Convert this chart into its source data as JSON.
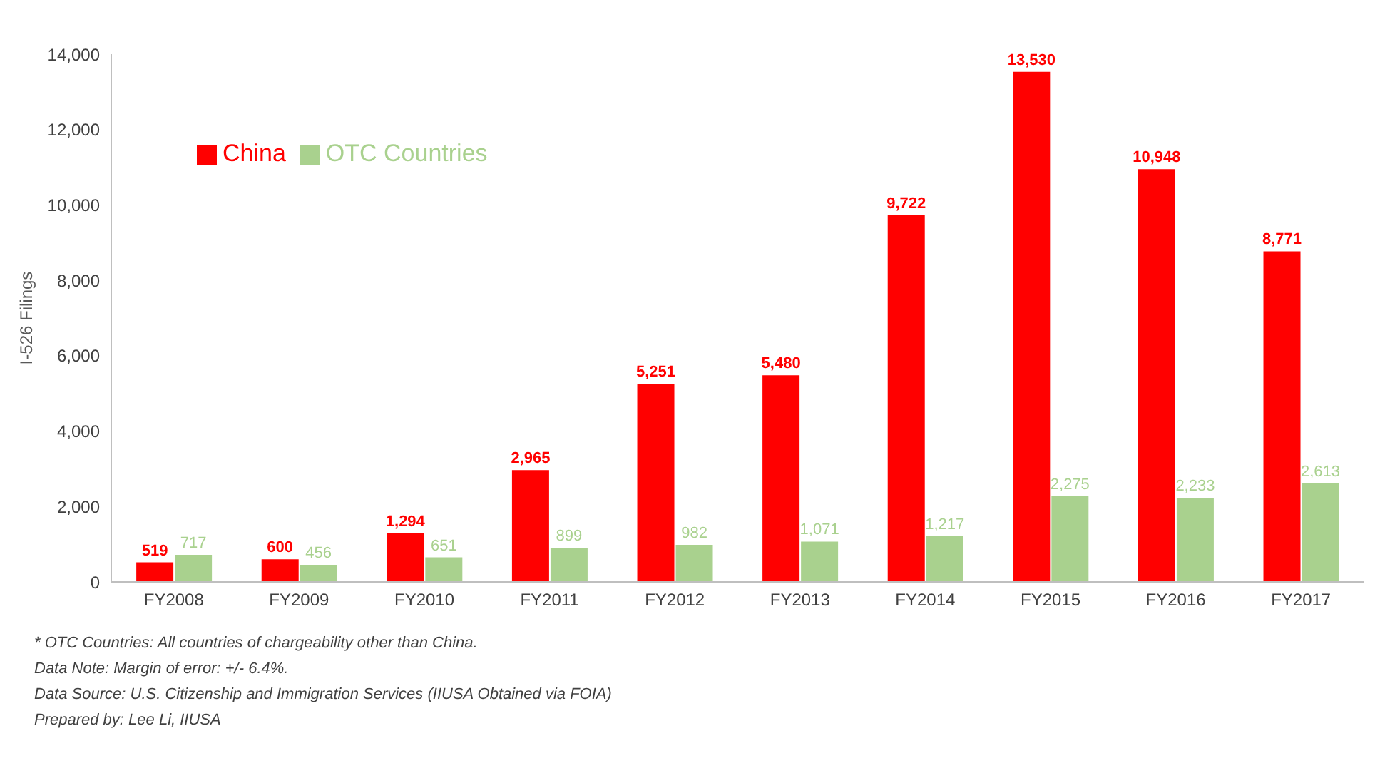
{
  "chart_data": {
    "type": "bar",
    "ylabel": "I-526 Filings",
    "categories": [
      "FY2008",
      "FY2009",
      "FY2010",
      "FY2011",
      "FY2012",
      "FY2013",
      "FY2014",
      "FY2015",
      "FY2016",
      "FY2017"
    ],
    "series": [
      {
        "name": "China",
        "color": "#ff0000",
        "values": [
          519,
          600,
          1294,
          2965,
          5251,
          5480,
          9722,
          13530,
          10948,
          8771
        ],
        "value_labels": [
          "519",
          "600",
          "1,294",
          "2,965",
          "5,251",
          "5,480",
          "9,722",
          "13,530",
          "10,948",
          "8,771"
        ]
      },
      {
        "name": "OTC Countries",
        "color": "#a9d18e",
        "values": [
          717,
          456,
          651,
          899,
          982,
          1071,
          1217,
          2275,
          2233,
          2613
        ],
        "value_labels": [
          "717",
          "456",
          "651",
          "899",
          "982",
          "1,071",
          "1,217",
          "2,275",
          "2,233",
          "2,613"
        ]
      }
    ],
    "ylim": [
      0,
      14000
    ],
    "yticks": [
      0,
      {
        "value": 2000,
        "label": "2,000"
      },
      {
        "value": 4000,
        "label": "4,000"
      },
      {
        "value": 6000,
        "label": "6,000"
      },
      {
        "value": 8000,
        "label": "8,000"
      },
      {
        "value": 10000,
        "label": "10,000"
      },
      {
        "value": 12000,
        "label": "12,000"
      },
      {
        "value": 14000,
        "label": "14,000"
      }
    ],
    "grid": false,
    "legend": "top left",
    "annotations": [
      "* OTC Countries: All countries of chargeability other than China.",
      "Data Note: Margin of error: +/- 6.4%.",
      "Data Source: U.S. Citizenship and Immigration Services (IIUSA Obtained via FOIA)",
      "Prepared by: Lee Li, IIUSA"
    ]
  }
}
